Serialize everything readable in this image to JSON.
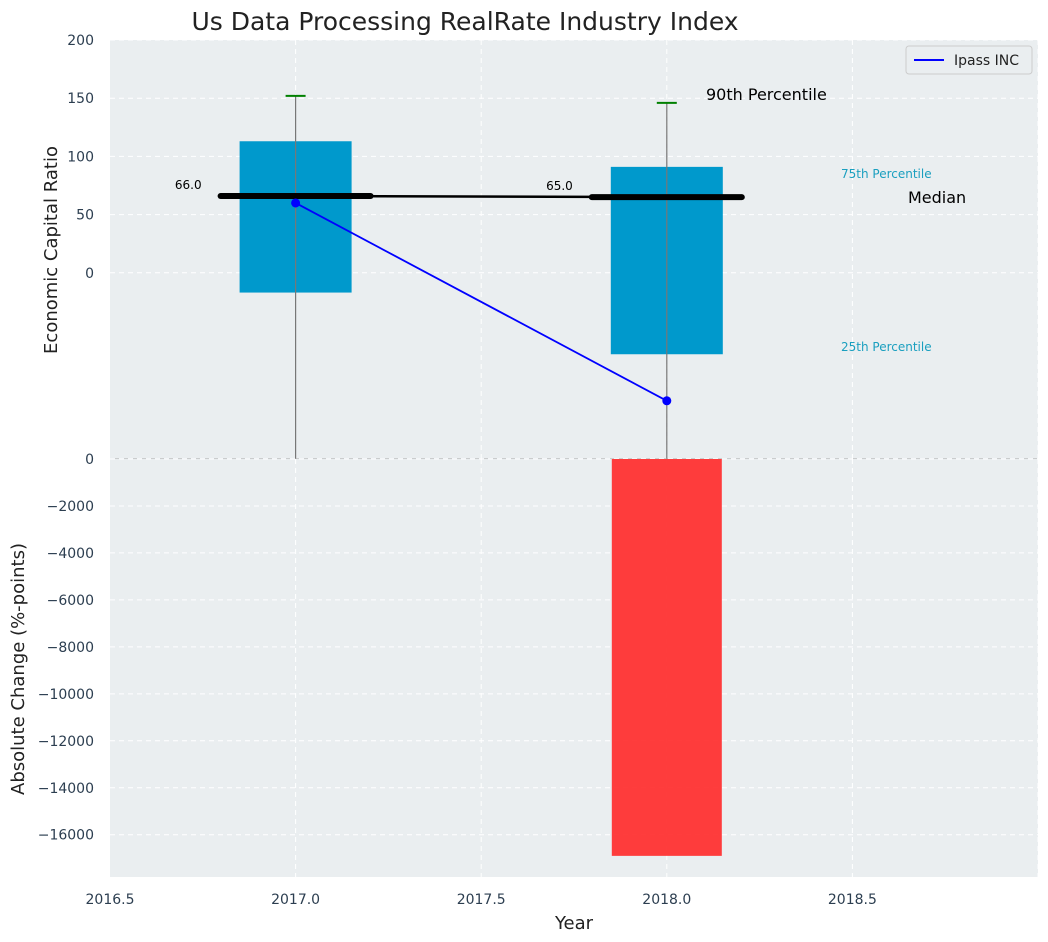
{
  "chart_data": {
    "type": "bar",
    "title": "Us Data Processing RealRate Industry Index",
    "xlabel": "Year",
    "colors": {
      "background": "#eaeef0",
      "box": "#0099cc",
      "median": "#000000",
      "whisker_cap": "#008000",
      "company": "#0000ff",
      "change_bar": "#ff2d2d",
      "annotation_cyan": "#1a9fbf"
    },
    "top_panel": {
      "ylabel": "Economic Capital Ratio",
      "ylim": [
        -160,
        200
      ],
      "yticks": [
        "200",
        "150",
        "100",
        "50",
        "0"
      ],
      "ytick_values": [
        200,
        150,
        100,
        50,
        0
      ],
      "x": [
        2017.0,
        2018.0
      ],
      "percentile_boxes": [
        {
          "year": 2017.0,
          "p25": -17,
          "p75": 113,
          "median": 66.0,
          "p90": 152,
          "median_label": "66.0"
        },
        {
          "year": 2018.0,
          "p25": -70,
          "p75": 91,
          "median": 65.0,
          "p90": 146,
          "median_label": "65.0"
        }
      ],
      "company_series": {
        "name": "Ipass INC",
        "values": [
          60,
          -110
        ]
      },
      "annotations": {
        "p90": "90th Percentile",
        "p75": "75th Percentile",
        "median": "Median",
        "p25": "25th Percentile"
      }
    },
    "bottom_panel": {
      "ylabel": "Absolute Change (%-points)",
      "ylim": [
        -17800,
        0
      ],
      "yticks": [
        "0",
        "−2000",
        "−4000",
        "−6000",
        "−8000",
        "−10000",
        "−12000",
        "−14000",
        "−16000"
      ],
      "ytick_values": [
        0,
        -2000,
        -4000,
        -6000,
        -8000,
        -10000,
        -12000,
        -14000,
        -16000
      ],
      "bars": [
        {
          "x": 2018.0,
          "value": -16900
        }
      ]
    },
    "xaxis": {
      "xlim": [
        2016.5,
        2019.0
      ],
      "xticks": [
        "2016.5",
        "2017.0",
        "2017.5",
        "2018.0",
        "2018.5"
      ],
      "xtick_values": [
        2016.5,
        2017.0,
        2017.5,
        2018.0,
        2018.5
      ]
    },
    "legend": {
      "position": "top-right",
      "entries": [
        "Ipass INC"
      ]
    },
    "grid": true
  }
}
